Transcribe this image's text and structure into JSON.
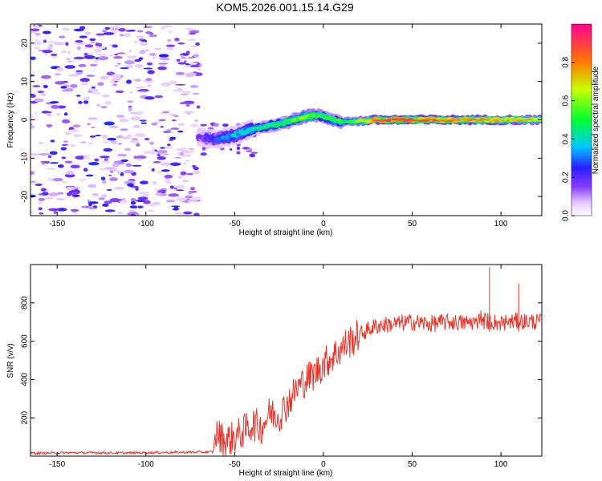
{
  "title": "KOM5.2026.001.15.14.G29",
  "chart_data": [
    {
      "type": "heatmap",
      "title": "",
      "xlabel": "Height of straight line (km)",
      "ylabel": "Frequency (Hz)",
      "xlim": [
        -165,
        123
      ],
      "ylim": [
        -25,
        25
      ],
      "xticks": [
        -150,
        -100,
        -50,
        0,
        50,
        100
      ],
      "yticks": [
        -20,
        -10,
        0,
        10,
        20
      ],
      "colorbar": {
        "label": "Normalized spectral amplitude",
        "range": [
          0,
          1
        ],
        "ticks": [
          "0.0",
          "0.2",
          "0.4",
          "0.6",
          "0.8"
        ]
      },
      "noise_region_x": [
        -165,
        -70
      ],
      "ridge": {
        "x": [
          -70,
          -60,
          -50,
          -40,
          -30,
          -20,
          -10,
          -5,
          0,
          10,
          20,
          30,
          40,
          60,
          80,
          100,
          123
        ],
        "y": [
          -4.5,
          -5,
          -4,
          -2.5,
          -1.5,
          -0.5,
          1.0,
          1.2,
          0.8,
          -0.5,
          -0.3,
          0,
          0,
          0,
          0,
          0,
          0
        ],
        "amplitude": [
          0.15,
          0.25,
          0.35,
          0.4,
          0.45,
          0.5,
          0.6,
          0.55,
          0.5,
          0.5,
          0.6,
          0.85,
          0.9,
          0.85,
          0.8,
          0.75,
          0.7
        ]
      }
    },
    {
      "type": "line",
      "title": "",
      "xlabel": "Height of straight line (km)",
      "ylabel": "SNR (v/v)",
      "xlim": [
        -165,
        123
      ],
      "ylim": [
        0,
        1000
      ],
      "xticks": [
        -150,
        -100,
        -50,
        0,
        50,
        100
      ],
      "yticks": [
        200,
        400,
        600,
        800
      ],
      "line_color": "#e8352b",
      "series": [
        {
          "name": "SNR",
          "x": [
            -165,
            -140,
            -110,
            -80,
            -62,
            -61,
            -55,
            -50,
            -45,
            -40,
            -35,
            -30,
            -25,
            -20,
            -15,
            -10,
            -5,
            0,
            5,
            10,
            15,
            20,
            25,
            30,
            40,
            50,
            60,
            70,
            80,
            90,
            95,
            100,
            110,
            123
          ],
          "y": [
            15,
            18,
            17,
            20,
            22,
            120,
            80,
            100,
            130,
            170,
            150,
            230,
            210,
            280,
            350,
            400,
            430,
            480,
            520,
            560,
            600,
            630,
            660,
            680,
            690,
            700,
            690,
            700,
            695,
            710,
            700,
            695,
            705,
            700
          ]
        }
      ]
    }
  ]
}
